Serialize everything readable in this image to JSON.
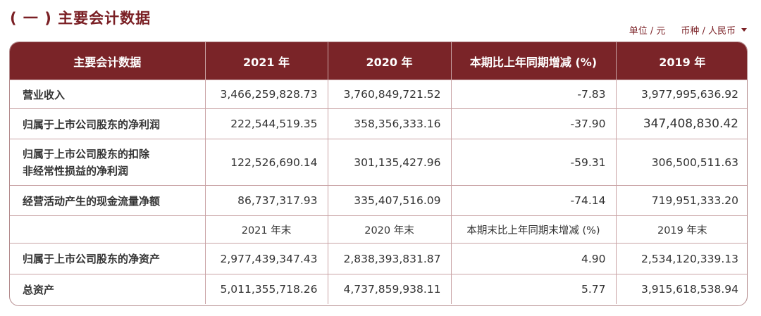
{
  "section_title": "( 一 ) 主要会计数据",
  "unit_label": "单位 / 元",
  "currency_label": "币种 / 人民币",
  "table": {
    "headers": [
      "主要会计数据",
      "2021 年",
      "2020 年",
      "本期比上年同期增减 (%)",
      "2019 年"
    ],
    "rows": [
      [
        "营业收入",
        "3,466,259,828.73",
        "3,760,849,721.52",
        "-7.83",
        "3,977,995,636.92"
      ],
      [
        "归属于上市公司股东的净利润",
        "222,544,519.35",
        "358,356,333.16",
        "-37.90",
        "347,408,830.42"
      ],
      [
        "归属于上市公司股东的扣除",
        "122,526,690.14",
        "301,135,427.96",
        "-59.31",
        "306,500,511.63"
      ],
      [
        "经营活动产生的现金流量净额",
        "86,737,317.93",
        "335,407,516.09",
        "-74.14",
        "719,951,333.20"
      ],
      [
        "",
        "2021 年末",
        "2020 年末",
        "本期末比上年同期末增减 (%)",
        "2019 年末"
      ],
      [
        "归属于上市公司股东的净资产",
        "2,977,439,347.43",
        "2,838,393,831.87",
        "4.90",
        "2,534,120,339.13"
      ],
      [
        "总资产",
        "5,011,355,718.26",
        "4,737,859,938.11",
        "5.77",
        "3,915,618,538.94"
      ]
    ],
    "row3_label_line2": "非经常性损益的净利润"
  }
}
